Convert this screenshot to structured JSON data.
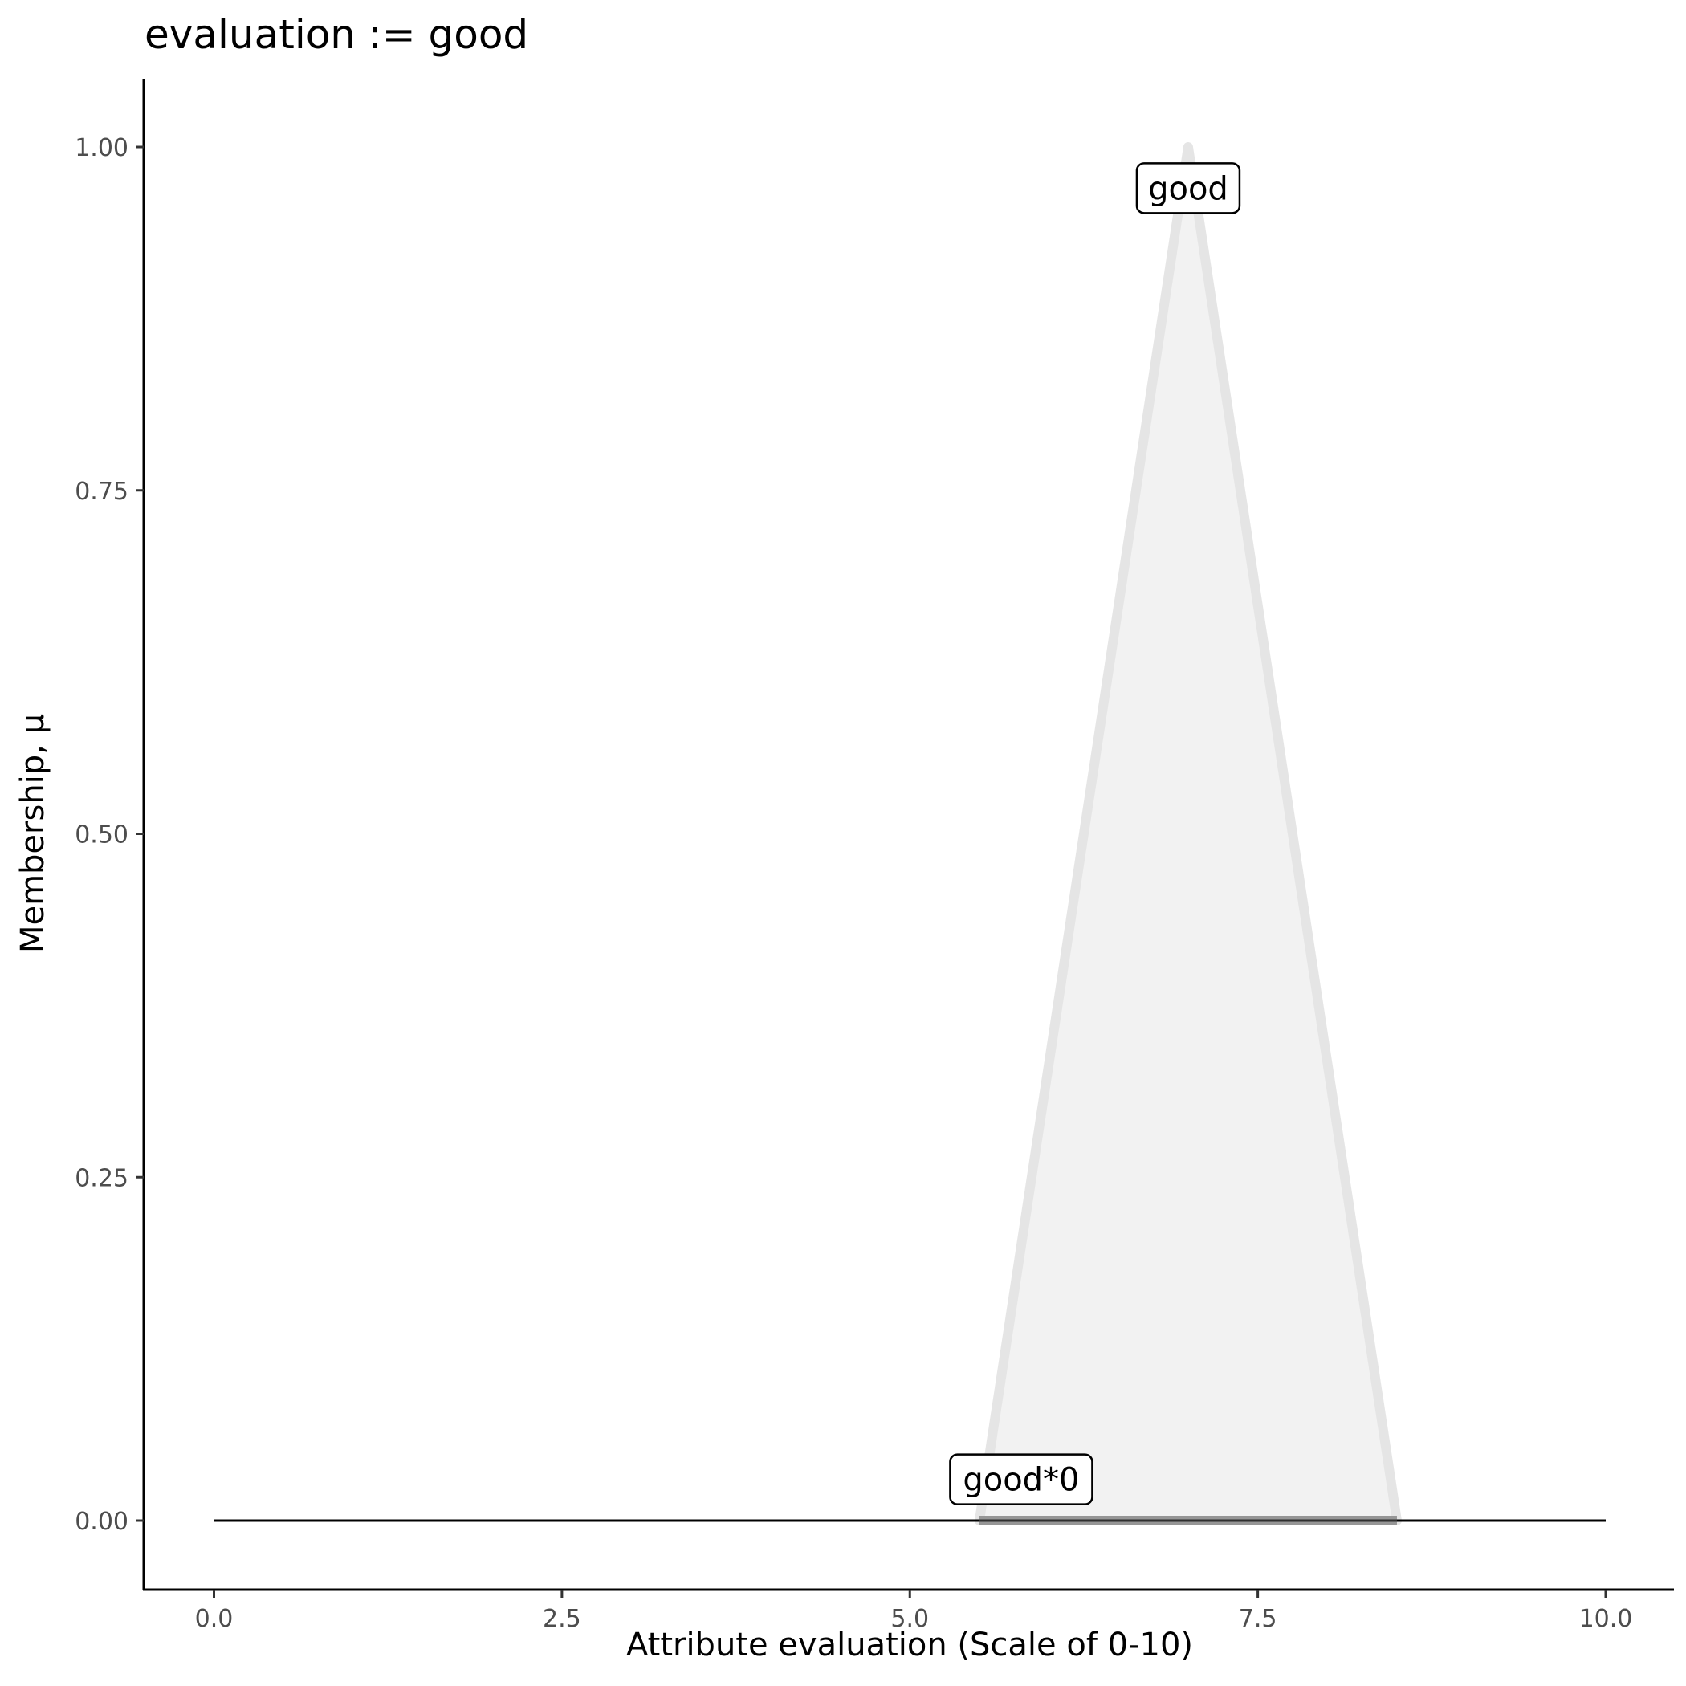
{
  "chart_data": {
    "type": "area",
    "title": "evaluation := good",
    "xlabel": "Attribute evaluation (Scale of 0-10)",
    "ylabel": "Membership, μ",
    "xlim": [
      -0.5,
      10.5
    ],
    "ylim": [
      -0.05,
      1.05
    ],
    "x_ticks": [
      0,
      2.5,
      5,
      7.5,
      10
    ],
    "x_tick_labels": [
      "0.0",
      "2.5",
      "5.0",
      "7.5",
      "10.0"
    ],
    "y_ticks": [
      0,
      0.25,
      0.5,
      0.75,
      1
    ],
    "y_tick_labels": [
      "0.00",
      "0.25",
      "0.50",
      "0.75",
      "1.00"
    ],
    "grid": false,
    "series": [
      {
        "name": "good",
        "kind": "fuzzy-set",
        "x": [
          5.5,
          7,
          8.5
        ],
        "y": [
          0,
          1,
          0
        ],
        "fill": "#f2f2f2",
        "stroke": "#e5e5e5"
      },
      {
        "name": "good*0",
        "kind": "scaled-set",
        "x": [
          5.5,
          7,
          8.5
        ],
        "y": [
          0,
          0,
          0
        ],
        "stroke": "#555555"
      },
      {
        "kind": "line",
        "x": [
          0,
          10
        ],
        "y": [
          0,
          0
        ],
        "stroke": "#000000"
      }
    ],
    "annotations": [
      {
        "text": "good",
        "x": 7,
        "y": 0.97
      },
      {
        "text": "good*0",
        "x": 5.8,
        "y": 0.03
      }
    ]
  }
}
